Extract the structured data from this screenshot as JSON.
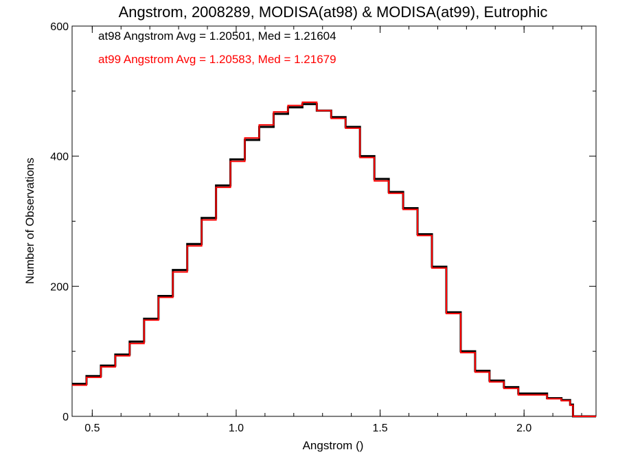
{
  "chart_data": {
    "type": "line",
    "title": "Angstrom, 2008289, MODISA(at98) & MODISA(at99), Eutrophic",
    "xlabel": "Angstrom ()",
    "ylabel": "Number of Observations",
    "xlim": [
      0.43,
      2.25
    ],
    "ylim": [
      0,
      600
    ],
    "x_ticks": [
      0.5,
      1.0,
      1.5,
      2.0
    ],
    "x_tick_labels": [
      "0.5",
      "1.0",
      "1.5",
      "2.0"
    ],
    "y_ticks": [
      0,
      200,
      400,
      600
    ],
    "y_tick_labels": [
      "0",
      "200",
      "400",
      "600"
    ],
    "grid": false,
    "annotations": [
      {
        "text": "at98 Angstrom Avg = 1.20501, Med = 1.21604",
        "color": "#000000"
      },
      {
        "text": "at99 Angstrom Avg = 1.20583, Med = 1.21679",
        "color": "#ff0000"
      }
    ],
    "x": [
      0.43,
      0.48,
      0.53,
      0.58,
      0.63,
      0.68,
      0.73,
      0.78,
      0.83,
      0.88,
      0.93,
      0.98,
      1.03,
      1.08,
      1.13,
      1.18,
      1.23,
      1.28,
      1.33,
      1.38,
      1.43,
      1.48,
      1.53,
      1.58,
      1.63,
      1.68,
      1.73,
      1.78,
      1.83,
      1.88,
      1.93,
      1.98,
      2.03,
      2.08,
      2.13,
      2.16,
      2.17,
      2.25
    ],
    "series": [
      {
        "color": "#000000",
        "values": [
          50,
          62,
          78,
          95,
          115,
          150,
          185,
          225,
          265,
          305,
          355,
          395,
          425,
          445,
          465,
          475,
          480,
          470,
          460,
          445,
          400,
          365,
          345,
          320,
          280,
          230,
          160,
          100,
          70,
          55,
          45,
          35,
          35,
          28,
          25,
          18,
          0,
          0
        ]
      },
      {
        "color": "#ff0000",
        "values": [
          48,
          60,
          76,
          93,
          112,
          148,
          183,
          222,
          262,
          302,
          352,
          392,
          428,
          448,
          468,
          478,
          483,
          470,
          458,
          443,
          398,
          362,
          343,
          318,
          278,
          228,
          158,
          98,
          68,
          53,
          43,
          33,
          33,
          27,
          24,
          17,
          0,
          0
        ]
      }
    ]
  }
}
